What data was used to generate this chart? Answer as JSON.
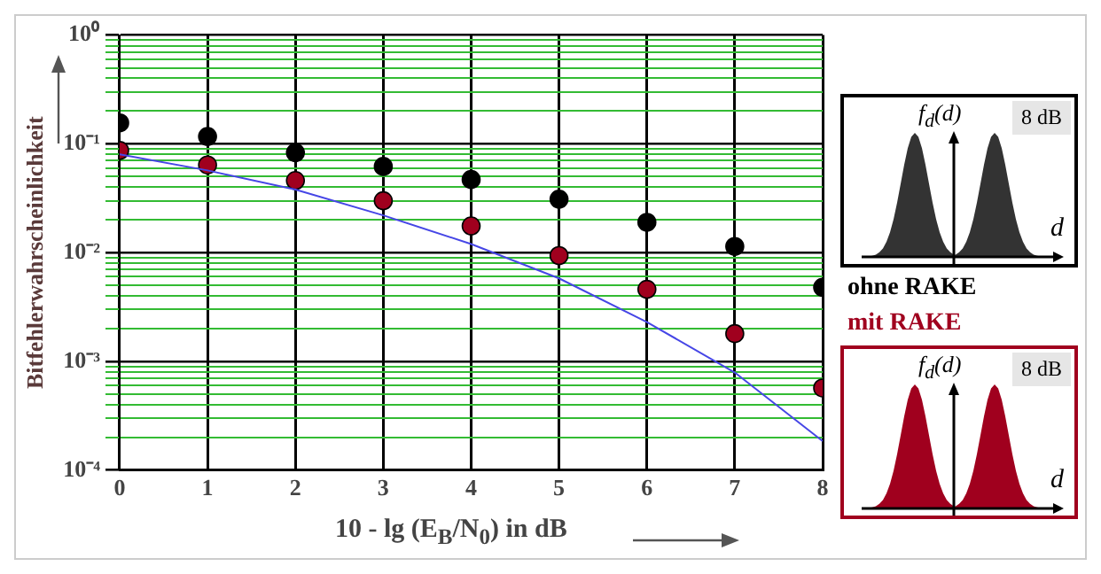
{
  "chart_data": {
    "type": "scatter",
    "xlabel": "10 - lg (E$_{B}$/N$_{0}$) in dB",
    "ylabel": "Bitfehlerwahrscheinlichkeit",
    "x": [
      0,
      1,
      2,
      3,
      4,
      5,
      6,
      7,
      8
    ],
    "series": [
      {
        "name": "ohne RAKE",
        "color": "#000000",
        "values": [
          0.156,
          0.117,
          0.083,
          0.062,
          0.047,
          0.031,
          0.019,
          0.0114,
          0.0048
        ]
      },
      {
        "name": "mit RAKE",
        "color": "#a0001e",
        "values": [
          0.087,
          0.064,
          0.046,
          0.03,
          0.0176,
          0.0094,
          0.0046,
          0.0018,
          0.00057
        ]
      },
      {
        "type": "line",
        "color": "#4646e6",
        "x": [
          0,
          1,
          2,
          3,
          4,
          5,
          6,
          7,
          8
        ],
        "values": [
          0.08,
          0.057,
          0.038,
          0.022,
          0.012,
          0.0058,
          0.0023,
          0.00079,
          0.000185
        ],
        "marker": "none"
      }
    ],
    "xlim": [
      0,
      8
    ],
    "xticks": [
      0,
      1,
      2,
      3,
      4,
      5,
      6,
      7,
      8
    ],
    "ylim": [
      0.0001,
      1
    ],
    "yticks": [
      {
        "value": 0.0001,
        "label": "10⁻⁴"
      },
      {
        "value": 0.0002,
        "label": null
      },
      {
        "value": 0.0003,
        "label": null
      },
      {
        "value": 0.0004,
        "label": null
      },
      {
        "value": 0.0005,
        "label": null
      },
      {
        "value": 0.0006,
        "label": null
      },
      {
        "value": 0.0007,
        "label": null
      },
      {
        "value": 0.0008,
        "label": null
      },
      {
        "value": 0.0009,
        "label": null
      },
      {
        "value": 0.001,
        "label": "10⁻³"
      },
      {
        "value": 0.002,
        "label": null
      },
      {
        "value": 0.003,
        "label": null
      },
      {
        "value": 0.004,
        "label": null
      },
      {
        "value": 0.005,
        "label": null
      },
      {
        "value": 0.006,
        "label": null
      },
      {
        "value": 0.007,
        "label": null
      },
      {
        "value": 0.008,
        "label": null
      },
      {
        "value": 0.009,
        "label": null
      },
      {
        "value": 0.01,
        "label": "10⁻²"
      },
      {
        "value": 0.02,
        "label": null
      },
      {
        "value": 0.03,
        "label": null
      },
      {
        "value": 0.04,
        "label": null
      },
      {
        "value": 0.05,
        "label": null
      },
      {
        "value": 0.06,
        "label": null
      },
      {
        "value": 0.07,
        "label": null
      },
      {
        "value": 0.08,
        "label": null
      },
      {
        "value": 0.09,
        "label": null
      },
      {
        "value": 0.1,
        "label": "10⁻¹"
      },
      {
        "value": 0.2,
        "label": null
      },
      {
        "value": 0.3,
        "label": null
      },
      {
        "value": 0.4,
        "label": null
      },
      {
        "value": 0.5,
        "label": null
      },
      {
        "value": 0.6,
        "label": null
      },
      {
        "value": 0.7,
        "label": null
      },
      {
        "value": 0.8,
        "label": null
      },
      {
        "value": 0.9,
        "label": null
      },
      {
        "value": 1,
        "label": "10⁰"
      }
    ],
    "log": true,
    "grid": true,
    "legend": "right",
    "marker": "circle",
    "annotations": [
      "f$_{d}$(d)",
      "8 dB",
      "d",
      "f$_{d}$(d)",
      "8 dB",
      "d"
    ]
  }
}
